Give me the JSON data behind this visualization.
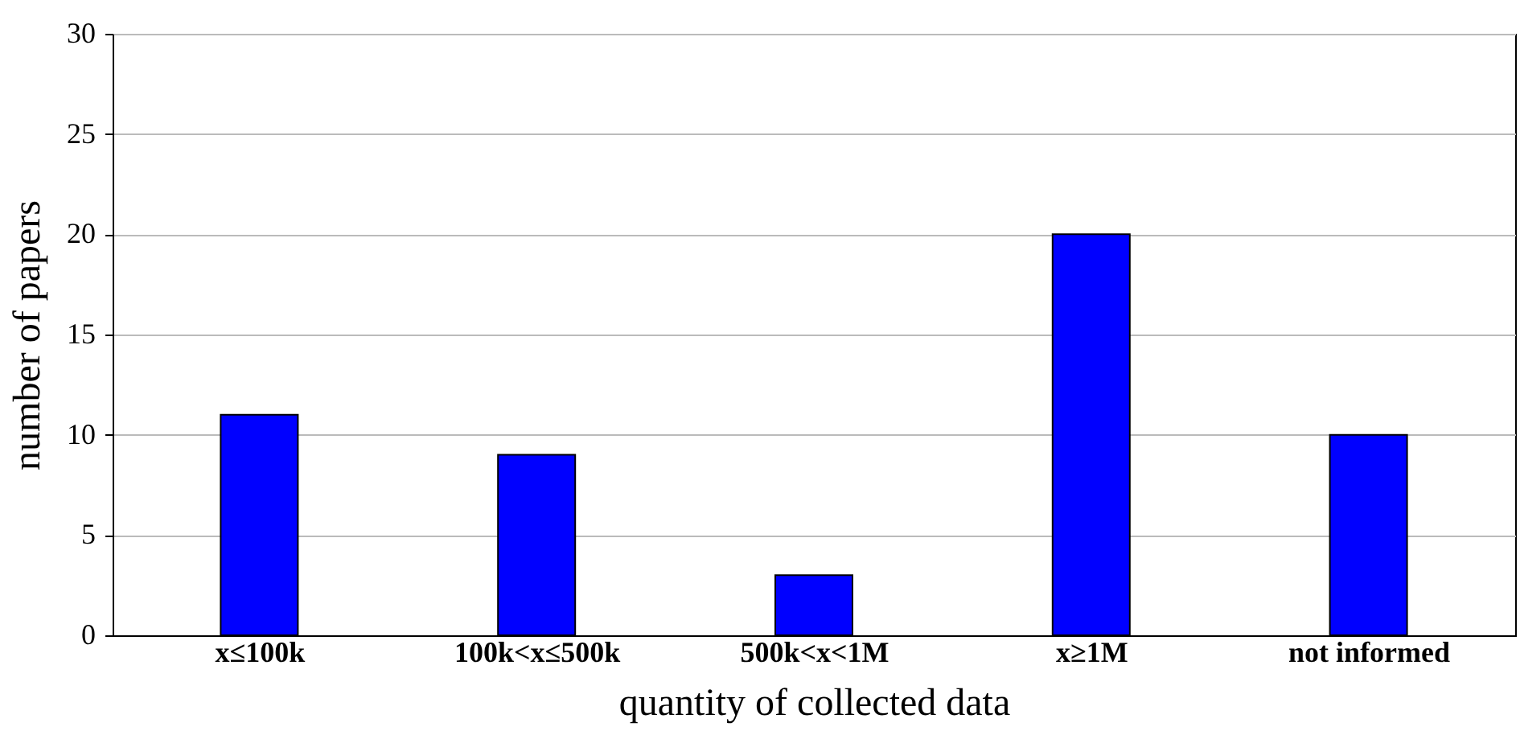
{
  "chart_data": {
    "type": "bar",
    "xlabel": "quantity of collected data",
    "ylabel": "number of papers",
    "categories": [
      "x≤100k",
      "100k<x≤500k",
      "500k<x<1M",
      "x≥1M",
      "not informed"
    ],
    "values": [
      11,
      9,
      3,
      20,
      10
    ],
    "color": "#0000ff",
    "ylim": [
      0,
      30
    ],
    "yticks": [
      0,
      5,
      10,
      15,
      20,
      25,
      30
    ],
    "grid": "y"
  }
}
